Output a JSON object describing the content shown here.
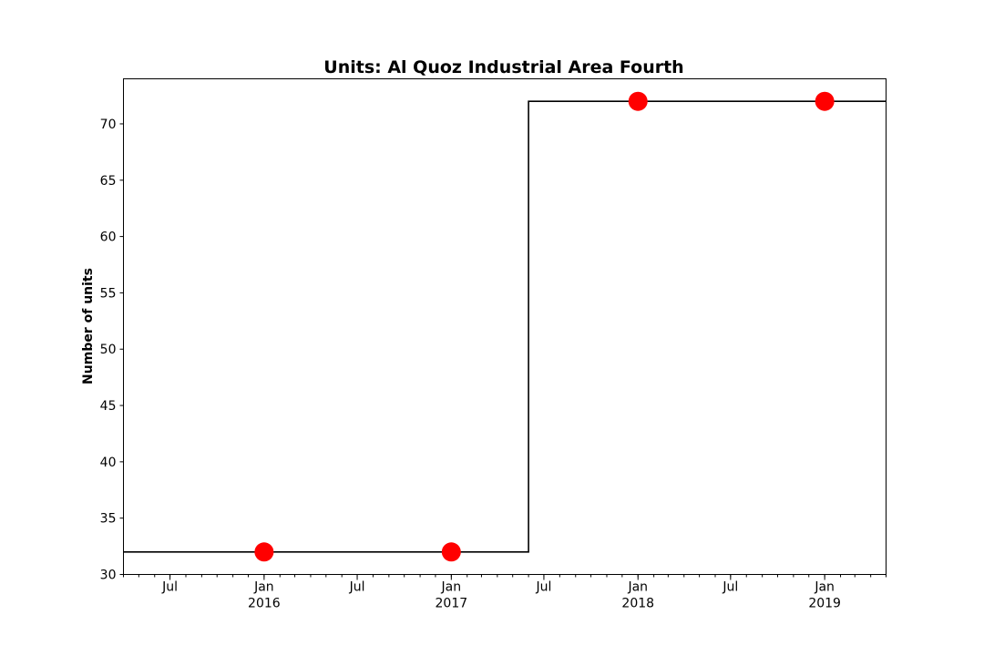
{
  "chart_data": {
    "type": "line",
    "title": "Units: Al Quoz Industrial Area Fourth",
    "xlabel": "",
    "ylabel": "Number of units",
    "xlim": [
      "2015-04-01",
      "2019-05-01"
    ],
    "ylim": [
      30,
      74
    ],
    "grid": false,
    "y_ticks": [
      30,
      35,
      40,
      45,
      50,
      55,
      60,
      65,
      70
    ],
    "x_major_ticks": [
      {
        "date": "2015-07-01",
        "label": "Jul",
        "sublabel": ""
      },
      {
        "date": "2016-01-01",
        "label": "Jan",
        "sublabel": "2016"
      },
      {
        "date": "2016-07-01",
        "label": "Jul",
        "sublabel": ""
      },
      {
        "date": "2017-01-01",
        "label": "Jan",
        "sublabel": "2017"
      },
      {
        "date": "2017-07-01",
        "label": "Jul",
        "sublabel": ""
      },
      {
        "date": "2018-01-01",
        "label": "Jan",
        "sublabel": "2018"
      },
      {
        "date": "2018-07-01",
        "label": "Jul",
        "sublabel": ""
      },
      {
        "date": "2019-01-01",
        "label": "Jan",
        "sublabel": "2019"
      }
    ],
    "series": [
      {
        "style": "step",
        "color": "#000000",
        "x": [
          "2015-04-01",
          "2017-06-01",
          "2019-05-01"
        ],
        "y": [
          32,
          72,
          72
        ]
      },
      {
        "style": "markers",
        "color": "#ff0000",
        "x": [
          "2016-01-01",
          "2017-01-01",
          "2018-01-01",
          "2019-01-01"
        ],
        "y": [
          32,
          32,
          72,
          72
        ]
      }
    ]
  }
}
